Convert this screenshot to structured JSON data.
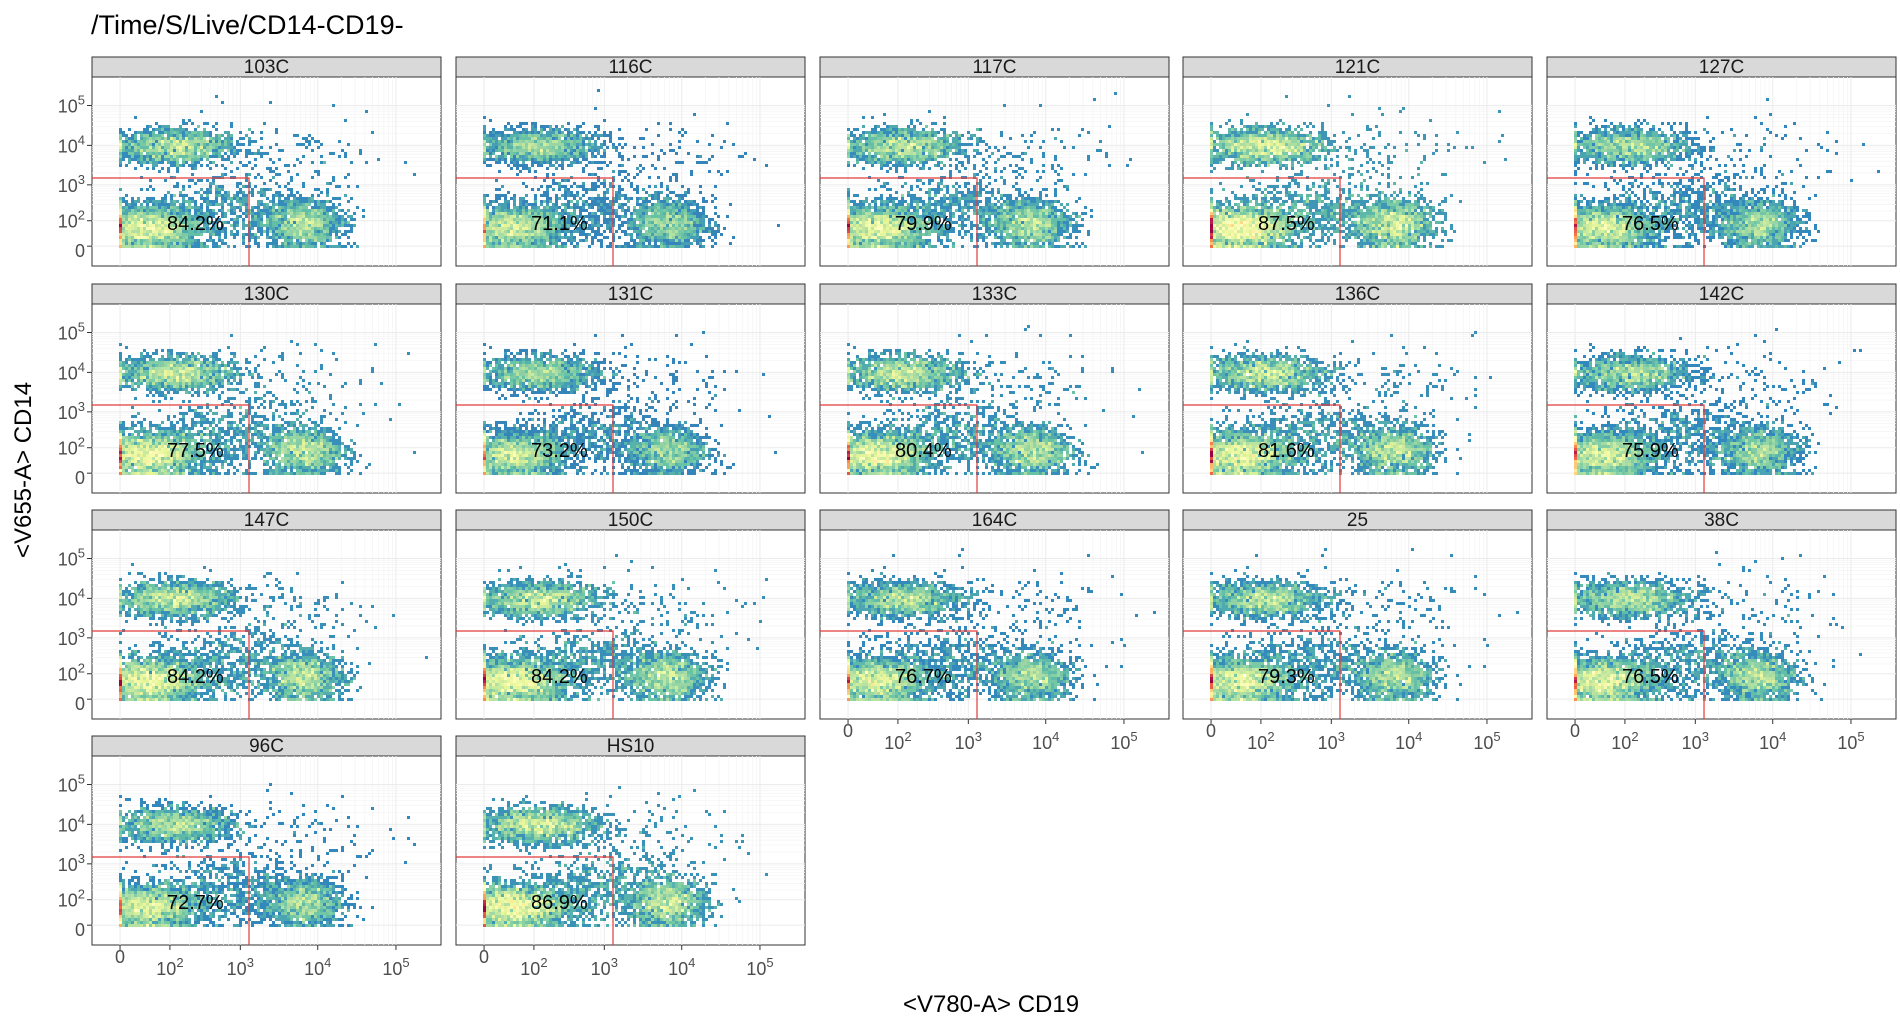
{
  "chart_data": {
    "type": "hexbin-density",
    "title": "/Time/S/Live/CD14-CD19-",
    "xlabel": "<V780-A> CD19",
    "ylabel": "<V655-A> CD14",
    "x_scale": "biexponential",
    "y_scale": "biexponential",
    "x_ticks": [
      "0",
      "10^2",
      "10^3",
      "10^4",
      "10^5"
    ],
    "y_ticks": [
      "0",
      "10^2",
      "10^3",
      "10^4",
      "10^5"
    ],
    "grid": true,
    "gate": {
      "x_max": 1300,
      "y_max": 1500
    },
    "panels": [
      {
        "name": "103C",
        "percent": "84.2%"
      },
      {
        "name": "116C",
        "percent": "71.1%"
      },
      {
        "name": "117C",
        "percent": "79.9%"
      },
      {
        "name": "121C",
        "percent": "87.5%"
      },
      {
        "name": "127C",
        "percent": "76.5%"
      },
      {
        "name": "130C",
        "percent": "77.5%"
      },
      {
        "name": "131C",
        "percent": "73.2%"
      },
      {
        "name": "133C",
        "percent": "80.4%"
      },
      {
        "name": "136C",
        "percent": "81.6%"
      },
      {
        "name": "142C",
        "percent": "75.9%"
      },
      {
        "name": "147C",
        "percent": "84.2%"
      },
      {
        "name": "150C",
        "percent": "84.2%"
      },
      {
        "name": "164C",
        "percent": "76.7%"
      },
      {
        "name": "25",
        "percent": "79.3%"
      },
      {
        "name": "38C",
        "percent": "76.5%"
      },
      {
        "name": "96C",
        "percent": "72.7%"
      },
      {
        "name": "HS10",
        "percent": "86.9%"
      }
    ],
    "colormap": [
      "#5e4fa2",
      "#3288bd",
      "#66c2a5",
      "#abdda4",
      "#e6f598",
      "#ffffbf",
      "#fee08b",
      "#fdae61",
      "#f46d43",
      "#d53e4f",
      "#9e0142"
    ]
  }
}
